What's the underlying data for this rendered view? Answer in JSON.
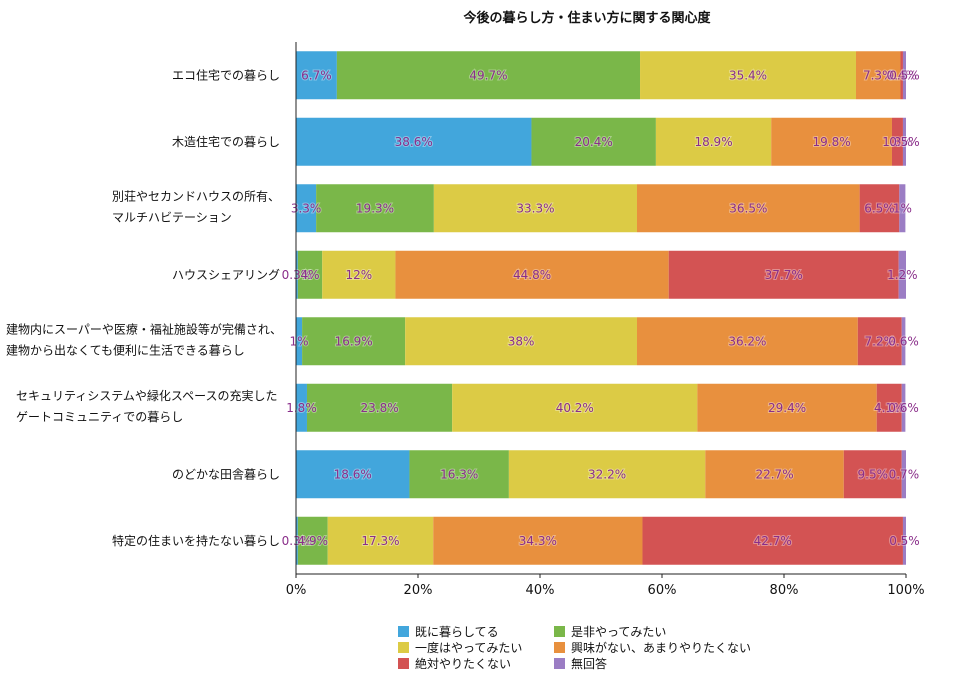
{
  "chart_data": {
    "type": "bar",
    "orientation": "horizontal",
    "stacked": true,
    "percent_stacked": true,
    "title": "今後の暮らし方・住まい方に関する関心度",
    "categories": [
      [
        "エコ住宅での暮らし"
      ],
      [
        "木造住宅での暮らし"
      ],
      [
        "別荘やセカンドハウスの所有、",
        "マルチハビテーション"
      ],
      [
        "ハウスシェアリング"
      ],
      [
        "建物内にスーパーや医療・福祉施設等が完備され、",
        "建物から出なくても便利に生活できる暮らし"
      ],
      [
        "セキュリティシステムや緑化スペースの充実した",
        "ゲートコミュニティでの暮らし"
      ],
      [
        "のどかな田舎暮らし"
      ],
      [
        "特定の住まいを持たない暮らし"
      ]
    ],
    "series": [
      {
        "name": "既に暮らしてる",
        "color": "#42a6dc",
        "values": [
          6.7,
          38.6,
          3.3,
          0.3,
          1,
          1.8,
          18.6,
          0.3
        ]
      },
      {
        "name": "是非やってみたい",
        "color": "#7ab749",
        "values": [
          49.7,
          20.4,
          19.3,
          4,
          16.9,
          23.8,
          16.3,
          4.9
        ]
      },
      {
        "name": "一度はやってみたい",
        "color": "#dccb45",
        "values": [
          35.4,
          18.9,
          33.3,
          12,
          38,
          40.2,
          32.2,
          17.3
        ]
      },
      {
        "name": "興味がない、あまりやりたくない",
        "color": "#e8903e",
        "values": [
          7.3,
          19.8,
          36.5,
          44.8,
          36.2,
          29.4,
          22.7,
          34.3
        ]
      },
      {
        "name": "絶対やりたくない",
        "color": "#d35353",
        "values": [
          0.4,
          1.8,
          6.5,
          37.7,
          7.2,
          4.1,
          9.5,
          42.7
        ]
      },
      {
        "name": "無回答",
        "color": "#9b7dc4",
        "values": [
          0.5,
          0.5,
          1,
          1.2,
          0.6,
          0.6,
          0.7,
          0.5
        ]
      }
    ],
    "xlim": [
      0,
      100
    ],
    "x_ticks": [
      "0%",
      "20%",
      "40%",
      "60%",
      "80%",
      "100%"
    ],
    "grid": false,
    "legend_position": "bottom",
    "data_label_color": "#8a2e8a"
  }
}
